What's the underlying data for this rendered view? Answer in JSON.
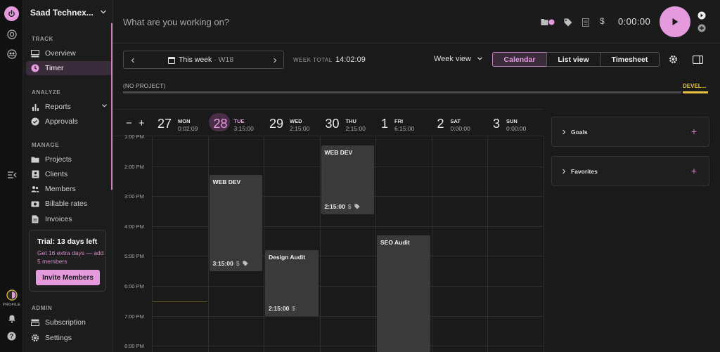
{
  "workspace": {
    "name": "Saad Technex..."
  },
  "rail": {
    "profile_label": "PROFILE"
  },
  "sidebar": {
    "sections": {
      "track": "TRACK",
      "analyze": "ANALYZE",
      "manage": "MANAGE",
      "admin": "ADMIN"
    },
    "items": {
      "overview": "Overview",
      "timer": "Timer",
      "reports": "Reports",
      "approvals": "Approvals",
      "projects": "Projects",
      "clients": "Clients",
      "members": "Members",
      "billable_rates": "Billable rates",
      "invoices": "Invoices",
      "subscription": "Subscription",
      "settings": "Settings"
    }
  },
  "trial": {
    "title": "Trial: 13 days left",
    "message": "Get 16 extra days — add 5 members",
    "button": "Invite Members"
  },
  "topbar": {
    "placeholder": "What are you working on?",
    "timer": "0:00:00"
  },
  "toolbar": {
    "week_label": "This week",
    "week_num": "· W18",
    "week_total_label": "WEEK TOTAL",
    "week_total": "14:02:09",
    "view_select": "Week view",
    "tabs": [
      "Calendar",
      "List view",
      "Timesheet"
    ]
  },
  "project_bar": {
    "label": "(NO PROJECT)",
    "dev": "DEVEL..."
  },
  "calendar": {
    "zoom_out": "−",
    "zoom_in": "+",
    "days": [
      {
        "num": "27",
        "name": "MON",
        "total": "0:02:09"
      },
      {
        "num": "28",
        "name": "TUE",
        "total": "3:15:00",
        "today": true
      },
      {
        "num": "29",
        "name": "WED",
        "total": "2:15:00"
      },
      {
        "num": "30",
        "name": "THU",
        "total": "2:15:00"
      },
      {
        "num": "1",
        "name": "FRI",
        "total": "6:15:00"
      },
      {
        "num": "2",
        "name": "SAT",
        "total": "0:00:00"
      },
      {
        "num": "3",
        "name": "SUN",
        "total": "0:00:00"
      }
    ],
    "hours": [
      "1:00 PM",
      "2:00 PM",
      "3:00 PM",
      "4:00 PM",
      "5:00 PM",
      "6:00 PM",
      "7:00 PM",
      "8:00 PM"
    ],
    "events": [
      {
        "title": "WEB DEV",
        "duration": "3:15:00",
        "day": 1,
        "start": 14.3,
        "end": 17.5,
        "tag": true
      },
      {
        "title": "Design Audit",
        "duration": "2:15:00",
        "day": 2,
        "start": 16.8,
        "end": 19.0,
        "tag": false
      },
      {
        "title": "WEB DEV",
        "duration": "2:15:00",
        "day": 3,
        "start": 13.3,
        "end": 15.6,
        "tag": true
      },
      {
        "title": "SEO Audit",
        "duration": "",
        "day": 4,
        "start": 16.3,
        "end": 20.2,
        "tag": false
      }
    ]
  },
  "panels": {
    "goals": "Goals",
    "favorites": "Favorites"
  },
  "colors": {
    "accent": "#e59ade",
    "accent_dark": "#3a2c3a",
    "dev_project": "#e9c33f"
  }
}
